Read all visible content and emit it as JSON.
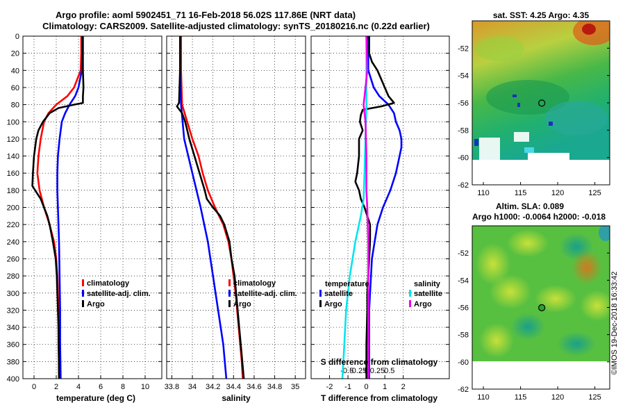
{
  "chart_data": {
    "type": "line",
    "title": "Argo profile: aoml 5902451_71 16-Feb-2018 56.02S 117.86E (NRT data)",
    "subtitle": "Climatology: CARS2009. Satellite-adjusted climatology: synTS_20180216.nc (0.22d earlier)",
    "depth": {
      "ylim": [
        0,
        400
      ],
      "ticks": [
        "0",
        "20",
        "40",
        "60",
        "80",
        "100",
        "120",
        "140",
        "160",
        "180",
        "200",
        "220",
        "240",
        "260",
        "280",
        "300",
        "320",
        "340",
        "360",
        "380",
        "400"
      ]
    },
    "panels": [
      {
        "id": "temperature",
        "xlabel": "temperature (deg C)",
        "xlim": [
          -1,
          11.5
        ],
        "ticks": [
          0,
          2,
          4,
          6,
          8,
          10
        ],
        "tick_labels": [
          "0",
          "2",
          "4",
          "6",
          "8",
          "10"
        ],
        "legend": [
          "climatology",
          "satellite-adj. clim.",
          "Argo"
        ],
        "series": [
          {
            "name": "climatology",
            "color": "#ff0000",
            "depth": [
              0,
              20,
              40,
              60,
              70,
              80,
              90,
              100,
              120,
              140,
              160,
              180,
              200,
              220,
              240,
              260,
              280,
              300,
              320,
              340,
              360,
              380,
              400
            ],
            "values": [
              4.25,
              4.25,
              4.2,
              3.6,
              3.0,
              2.0,
              1.3,
              0.9,
              0.6,
              0.4,
              0.3,
              0.5,
              0.9,
              1.4,
              1.8,
              2.0,
              2.1,
              2.15,
              2.2,
              2.2,
              2.2,
              2.25,
              2.25
            ]
          },
          {
            "name": "satellite-adj. clim.",
            "color": "#0000ff",
            "depth": [
              0,
              20,
              40,
              60,
              70,
              80,
              90,
              100,
              120,
              140,
              160,
              180,
              200,
              240,
              280,
              320,
              360,
              400
            ],
            "values": [
              4.35,
              4.35,
              4.3,
              4.0,
              3.7,
              3.2,
              2.8,
              2.5,
              2.3,
              2.15,
              2.1,
              2.1,
              2.15,
              2.25,
              2.3,
              2.35,
              2.35,
              2.4
            ]
          },
          {
            "name": "Argo",
            "color": "#000000",
            "depth": [
              0,
              20,
              40,
              60,
              70,
              78,
              80,
              84,
              90,
              100,
              110,
              120,
              140,
              160,
              175,
              180,
              190,
              200,
              210,
              220,
              240,
              260,
              280,
              300,
              340,
              400
            ],
            "values": [
              4.4,
              4.4,
              4.4,
              4.45,
              4.4,
              4.4,
              3.6,
              2.2,
              1.4,
              0.8,
              0.4,
              0.2,
              0.0,
              -0.1,
              -0.15,
              0.1,
              0.6,
              0.9,
              1.2,
              1.4,
              1.7,
              1.95,
              2.05,
              2.1,
              2.2,
              2.25
            ]
          }
        ]
      },
      {
        "id": "salinity",
        "xlabel": "salinity",
        "xlim": [
          33.75,
          35.1
        ],
        "ticks": [
          33.8,
          34.0,
          34.2,
          34.4,
          34.6,
          34.8,
          35.0
        ],
        "tick_labels": [
          "33.8",
          "34",
          "34.2",
          "34.4",
          "34.6",
          "34.8",
          "35"
        ],
        "legend": [
          "climatology",
          "satellite-adj. clim.",
          "Argo"
        ],
        "series": [
          {
            "name": "climatology",
            "color": "#ff0000",
            "depth": [
              0,
              40,
              80,
              100,
              120,
              140,
              160,
              180,
              200,
              220,
              240,
              260,
              280,
              300,
              340,
              380,
              400
            ],
            "values": [
              33.89,
              33.89,
              33.9,
              33.95,
              34.0,
              34.06,
              34.1,
              34.15,
              34.22,
              34.3,
              34.35,
              34.38,
              34.4,
              34.42,
              34.45,
              34.48,
              34.49
            ]
          },
          {
            "name": "satellite-adj. clim.",
            "color": "#0000ff",
            "depth": [
              0,
              40,
              80,
              120,
              160,
              200,
              240,
              280,
              320,
              360,
              400
            ],
            "values": [
              33.88,
              33.88,
              33.89,
              33.92,
              34.0,
              34.08,
              34.15,
              34.2,
              34.25,
              34.3,
              34.33
            ]
          },
          {
            "name": "Argo",
            "color": "#000000",
            "depth": [
              0,
              40,
              78,
              82,
              90,
              100,
              120,
              140,
              160,
              180,
              190,
              200,
              210,
              220,
              240,
              260,
              280,
              320,
              360,
              400
            ],
            "values": [
              33.88,
              33.88,
              33.87,
              33.85,
              33.9,
              33.93,
              33.97,
              34.02,
              34.07,
              34.12,
              34.14,
              34.2,
              34.27,
              34.31,
              34.36,
              34.38,
              34.41,
              34.44,
              34.47,
              34.5
            ]
          }
        ]
      },
      {
        "id": "difference",
        "xlabel": "T difference from climatology",
        "xlabel2": "S difference from climatology",
        "xlim": [
          -3,
          4.5
        ],
        "ticks": [
          -2,
          -1,
          0,
          1,
          2
        ],
        "tick_labels": [
          "-2",
          "-1",
          "0",
          "1",
          "2"
        ],
        "ticks2": [
          -1.05,
          -0.45,
          0,
          0.6,
          1.25
        ],
        "tick_labels2": [
          "-0.5",
          "-0.25",
          "0",
          "0.25",
          "0.5"
        ],
        "legend_temperature_title": "temperature",
        "legend_salinity_title": "salinity",
        "legend_temperature": [
          "satellite",
          "Argo"
        ],
        "legend_salinity": [
          "satellite",
          "Argo"
        ],
        "series": [
          {
            "name": "temperature satellite",
            "color": "#0000ff",
            "depth": [
              0,
              20,
              40,
              60,
              70,
              80,
              90,
              100,
              110,
              120,
              130,
              140,
              160,
              180,
              200,
              220,
              240,
              260,
              280,
              300,
              320,
              360,
              400
            ],
            "values": [
              0.1,
              0.1,
              0.1,
              0.4,
              0.7,
              1.2,
              1.5,
              1.6,
              1.8,
              1.9,
              1.9,
              1.8,
              1.6,
              1.3,
              0.9,
              0.6,
              0.45,
              0.3,
              0.25,
              0.2,
              0.15,
              0.15,
              0.15
            ]
          },
          {
            "name": "temperature Argo",
            "color": "#000000",
            "depth": [
              0,
              20,
              30,
              40,
              50,
              60,
              70,
              78,
              82,
              86,
              92,
              100,
              110,
              120,
              140,
              160,
              170,
              180,
              190,
              200,
              220,
              240,
              260,
              280,
              300,
              320,
              360,
              400
            ],
            "values": [
              0.15,
              0.15,
              0.3,
              0.6,
              0.8,
              1.0,
              1.2,
              1.5,
              0.8,
              -0.2,
              -0.3,
              -0.35,
              -0.2,
              -0.4,
              -0.4,
              -0.5,
              -0.6,
              -0.4,
              -0.3,
              -0.1,
              0.2,
              0.2,
              0.15,
              0.1,
              0.05,
              0.05,
              0.0,
              0.0
            ]
          },
          {
            "name": "salinity satellite",
            "color": "#00e5ee",
            "depth": [
              0,
              40,
              80,
              120,
              160,
              190,
              210,
              240,
              280,
              320,
              360,
              400
            ],
            "values": [
              0.0,
              0.0,
              0.0,
              -0.05,
              -0.1,
              -0.15,
              -0.3,
              -0.6,
              -0.9,
              -1.1,
              -1.2,
              -1.3
            ]
          },
          {
            "name": "salinity Argo",
            "color": "#ee00ee",
            "depth": [
              0,
              40,
              60,
              80,
              100,
              140,
              180,
              200,
              240,
              280,
              320,
              360,
              400
            ],
            "values": [
              0.0,
              0.05,
              -0.05,
              -0.15,
              -0.05,
              0.0,
              0.0,
              0.05,
              0.1,
              0.1,
              0.1,
              0.1,
              0.1
            ]
          }
        ]
      }
    ],
    "maps": [
      {
        "id": "sst_map",
        "title": "sat. SST: 4.25 Argo: 4.35",
        "xlim": [
          108.5,
          127
        ],
        "ylim": [
          -62,
          -50
        ],
        "xticks": [
          110,
          115,
          120,
          125
        ],
        "xtick_labels": [
          "110",
          "115",
          "120",
          "125"
        ],
        "yticks": [
          -52,
          -54,
          -56,
          -58,
          -60,
          -62
        ],
        "ytick_labels": [
          "-52",
          "-54",
          "-56",
          "-58",
          "-60",
          "-62"
        ],
        "marker": {
          "lon": 117.86,
          "lat": -56.02
        }
      },
      {
        "id": "sla_map",
        "title": "Altim. SLA: 0.089",
        "title2": "Argo h1000: -0.0064 h2000: -0.018",
        "xlim": [
          108.5,
          127
        ],
        "ylim": [
          -62,
          -50
        ],
        "xticks": [
          110,
          115,
          120,
          125
        ],
        "xtick_labels": [
          "110",
          "115",
          "120",
          "125"
        ],
        "yticks": [
          -52,
          -54,
          -56,
          -58,
          -60,
          -62
        ],
        "ytick_labels": [
          "-52",
          "-54",
          "-56",
          "-58",
          "-60",
          "-62"
        ],
        "marker": {
          "lon": 117.86,
          "lat": -56.02
        }
      }
    ],
    "credit": "©IMOS 19-Dec-2018 16:33:42"
  }
}
